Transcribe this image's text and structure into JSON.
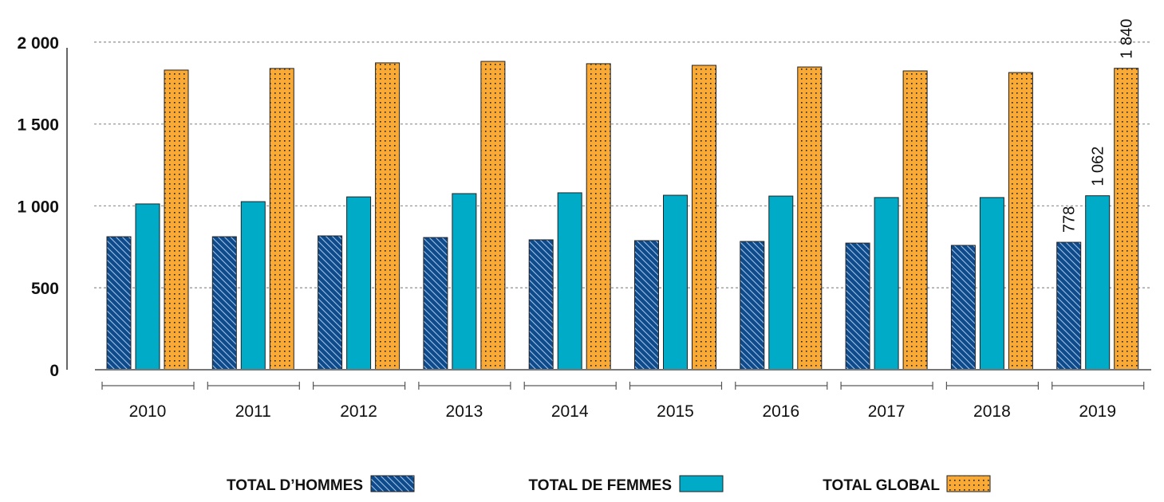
{
  "chart_data": {
    "type": "bar",
    "categories": [
      "2010",
      "2011",
      "2012",
      "2013",
      "2014",
      "2015",
      "2016",
      "2017",
      "2018",
      "2019"
    ],
    "series": [
      {
        "name": "TOTAL D’HOMMES",
        "color": "#0f4a8a",
        "pattern": "diagonal-hatch",
        "values": [
          812,
          812,
          817,
          807,
          793,
          788,
          783,
          773,
          759,
          778
        ]
      },
      {
        "name": "TOTAL DE FEMMES",
        "color": "#00abc8",
        "pattern": "solid",
        "values": [
          1012,
          1026,
          1055,
          1075,
          1080,
          1065,
          1060,
          1051,
          1051,
          1062
        ]
      },
      {
        "name": "TOTAL GLOBAL",
        "color": "#f9a936",
        "pattern": "dots",
        "values": [
          1829,
          1839,
          1873,
          1882,
          1868,
          1858,
          1848,
          1824,
          1814,
          1840
        ]
      }
    ],
    "data_labels": [
      {
        "category": "2019",
        "series": "TOTAL D’HOMMES",
        "text": "778"
      },
      {
        "category": "2019",
        "series": "TOTAL DE FEMMES",
        "text": "1 062"
      },
      {
        "category": "2019",
        "series": "TOTAL GLOBAL",
        "text": "1 840"
      }
    ],
    "yticks": [
      {
        "value": 0,
        "label": "0"
      },
      {
        "value": 500,
        "label": "500"
      },
      {
        "value": 1000,
        "label": "1 000"
      },
      {
        "value": 1500,
        "label": "1 500"
      },
      {
        "value": 2000,
        "label": "2 000"
      }
    ],
    "ylim": [
      0,
      2000
    ],
    "grid": true,
    "legend_position": "bottom",
    "title": "",
    "xlabel": "",
    "ylabel": ""
  }
}
